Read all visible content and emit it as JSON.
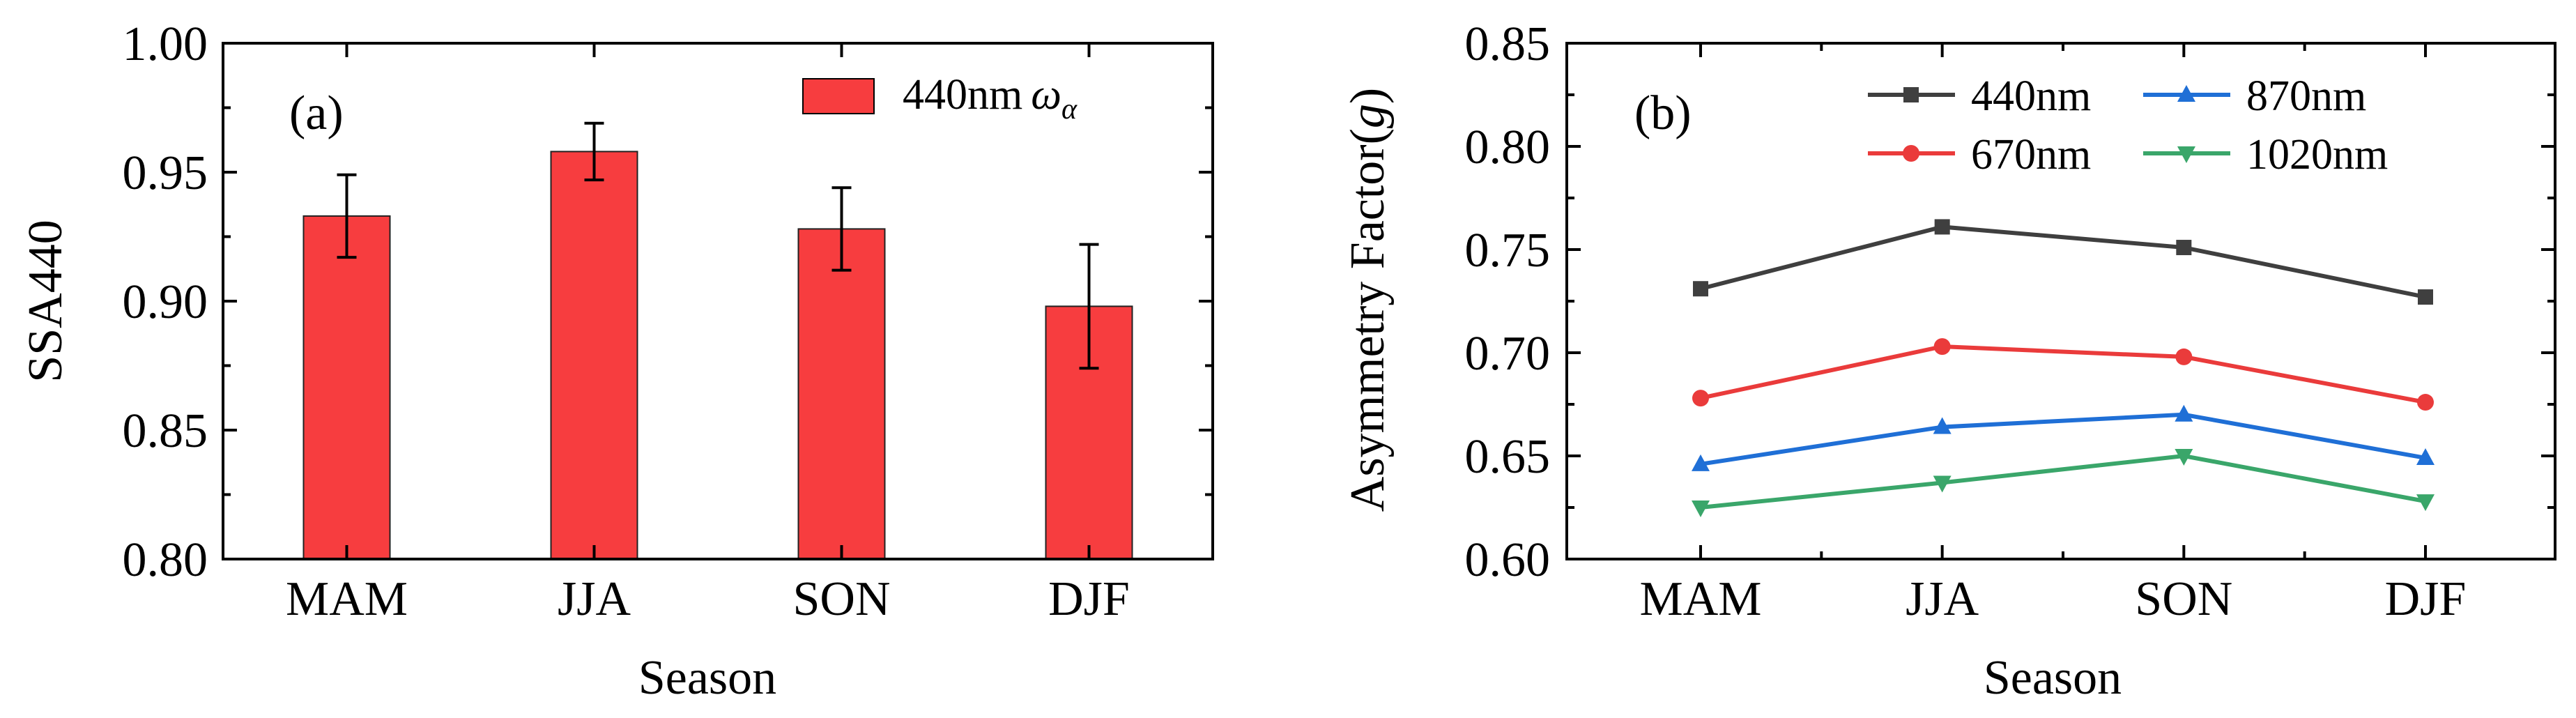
{
  "chart_data": [
    {
      "type": "bar",
      "panel_label": "(a)",
      "categories": [
        "MAM",
        "JJA",
        "SON",
        "DJF"
      ],
      "values": [
        0.933,
        0.958,
        0.928,
        0.898
      ],
      "errors": [
        0.016,
        0.011,
        0.016,
        0.024
      ],
      "series_name": "440nm",
      "series_symbol": "ω",
      "series_subscript": "α",
      "bar_color": "#f73d3f",
      "xlabel": "Season",
      "ylabel": "SSA440",
      "ylim": [
        0.8,
        1.0
      ],
      "yticks": [
        "0.80",
        "0.85",
        "0.90",
        "0.95",
        "1.00"
      ],
      "legend_position": "top-right"
    },
    {
      "type": "line",
      "panel_label": "(b)",
      "categories": [
        "MAM",
        "JJA",
        "SON",
        "DJF"
      ],
      "series": [
        {
          "name": "440nm",
          "values": [
            0.731,
            0.761,
            0.751,
            0.727
          ],
          "color": "#3f3f3f",
          "marker": "square"
        },
        {
          "name": "670nm",
          "values": [
            0.678,
            0.703,
            0.698,
            0.676
          ],
          "color": "#ea3b3b",
          "marker": "circle"
        },
        {
          "name": "870nm",
          "values": [
            0.646,
            0.664,
            0.67,
            0.649
          ],
          "color": "#1f6fd6",
          "marker": "triangle-up"
        },
        {
          "name": "1020nm",
          "values": [
            0.625,
            0.637,
            0.65,
            0.628
          ],
          "color": "#3aa66a",
          "marker": "triangle-down"
        }
      ],
      "xlabel": "Season",
      "ylabel_text": "Asymmetry Factor(",
      "ylabel_symbol": "g",
      "ylabel_close": ")",
      "ylim": [
        0.6,
        0.85
      ],
      "yticks": [
        "0.60",
        "0.65",
        "0.70",
        "0.75",
        "0.80",
        "0.85"
      ],
      "legend_position": "top"
    }
  ]
}
